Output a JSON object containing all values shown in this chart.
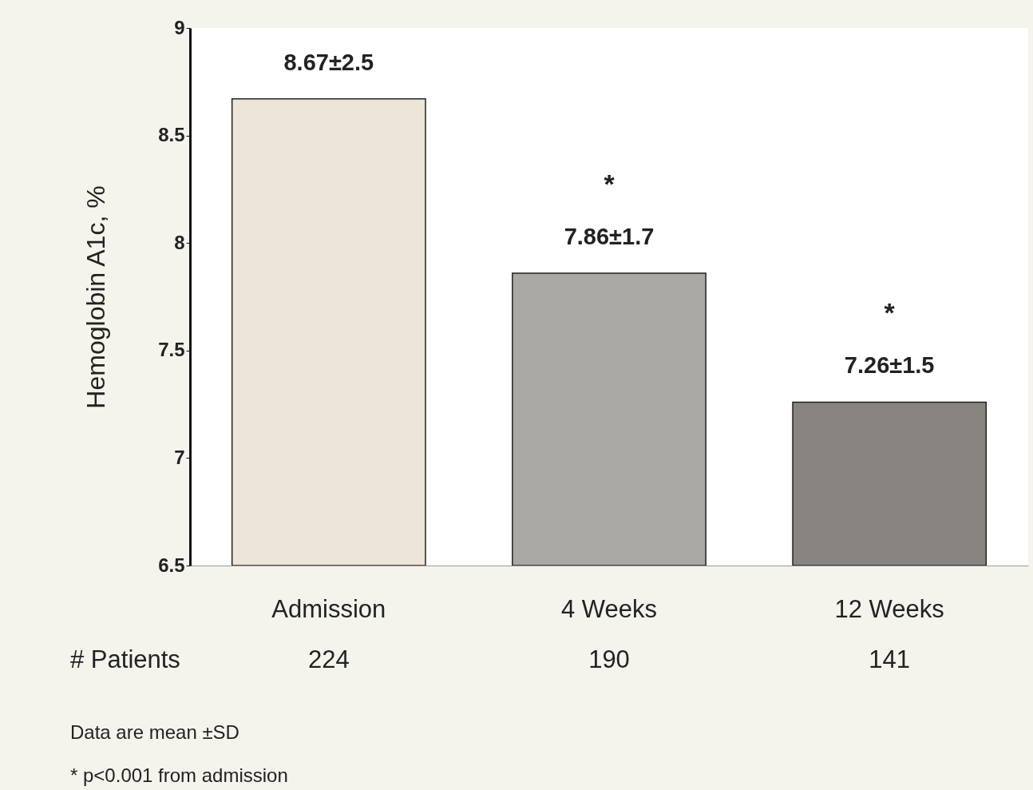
{
  "chart_data": {
    "type": "bar",
    "ylabel": "Hemoglobin A1c, %",
    "categories": [
      "Admission",
      "4 Weeks",
      "12 Weeks"
    ],
    "values": [
      8.67,
      7.86,
      7.26
    ],
    "colors": [
      "#ede5d8",
      "#a9a8a2",
      "#888580"
    ],
    "value_labels": [
      "8.67±2.5",
      "7.86±1.7",
      "7.26±1.5"
    ],
    "ylim": [
      6.5,
      9
    ],
    "yticks": [
      6.5,
      7,
      7.5,
      8,
      8.5,
      9
    ],
    "grid": false,
    "annotations": [
      "*",
      "*",
      "# Patients",
      "224",
      "190",
      "141",
      "Data are mean ±SD",
      "* p<0.001 from admission"
    ]
  }
}
